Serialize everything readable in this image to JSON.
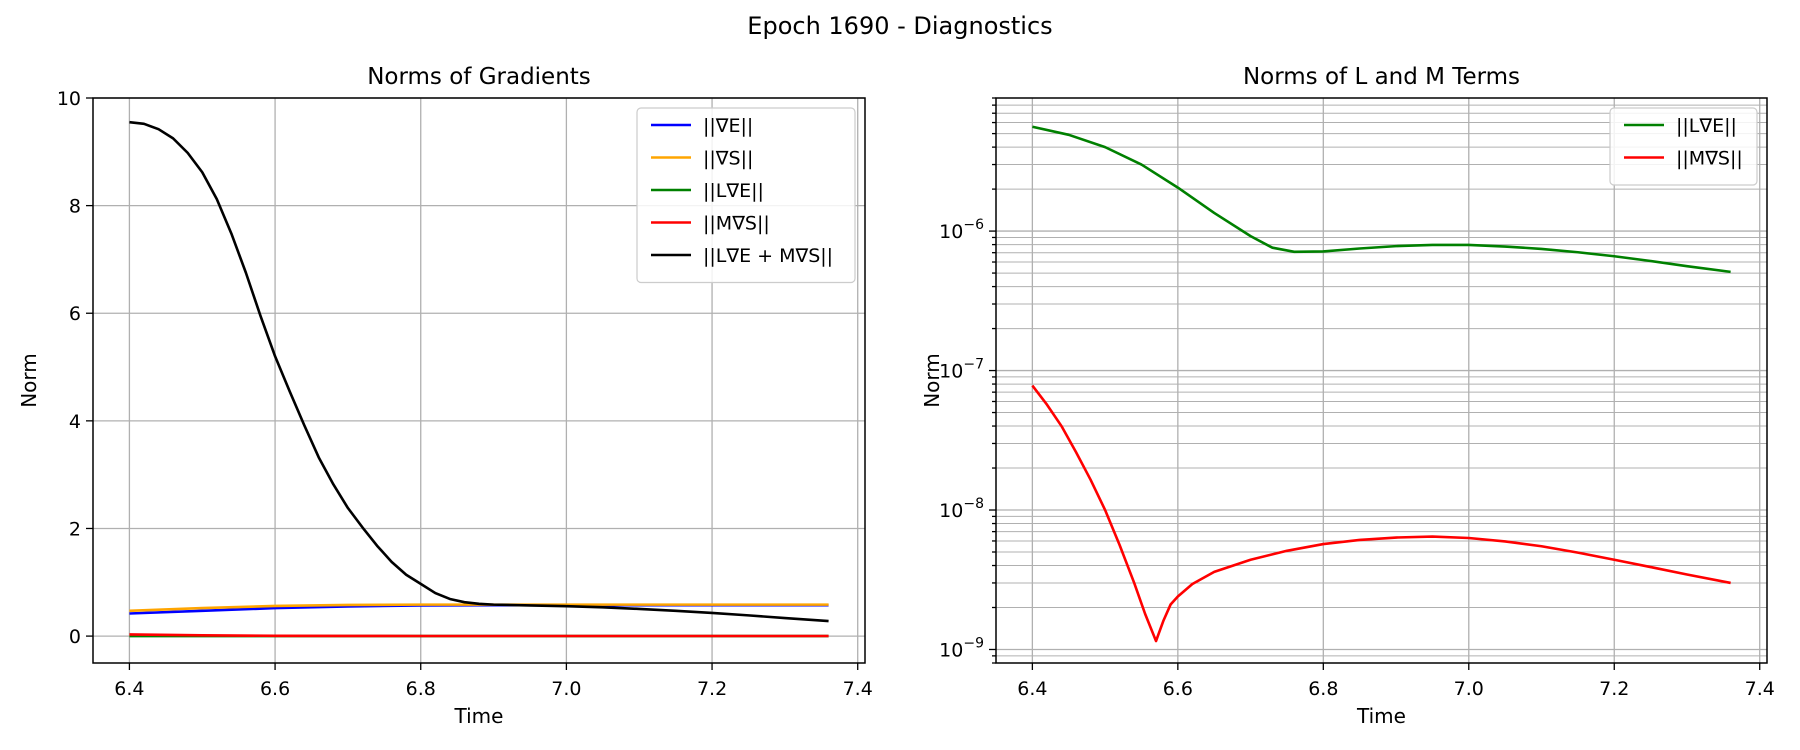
{
  "suptitle": "Epoch 1690 - Diagnostics",
  "chart_data": [
    {
      "type": "line",
      "title": "Norms of Gradients",
      "xlabel": "Time",
      "ylabel": "Norm",
      "xlim": [
        6.35,
        7.41
      ],
      "ylim": [
        -0.5,
        10
      ],
      "yscale": "linear",
      "xticks": [
        6.4,
        6.6,
        6.8,
        7.0,
        7.2,
        7.4
      ],
      "xtick_labels": [
        "6.4",
        "6.6",
        "6.8",
        "7.0",
        "7.2",
        "7.4"
      ],
      "yticks": [
        0,
        2,
        4,
        6,
        8,
        10
      ],
      "ytick_labels": [
        "0",
        "2",
        "4",
        "6",
        "8",
        "10"
      ],
      "grid": true,
      "legend_position": "upper right",
      "series": [
        {
          "name": "||∇E||",
          "color": "#0000ff",
          "x": [
            6.4,
            6.5,
            6.6,
            6.7,
            6.8,
            6.9,
            7.0,
            7.1,
            7.2,
            7.36
          ],
          "y": [
            0.42,
            0.47,
            0.52,
            0.55,
            0.57,
            0.575,
            0.575,
            0.575,
            0.575,
            0.575
          ]
        },
        {
          "name": "||∇S||",
          "color": "#ffa500",
          "x": [
            6.4,
            6.5,
            6.6,
            6.7,
            6.8,
            6.9,
            7.0,
            7.1,
            7.2,
            7.36
          ],
          "y": [
            0.47,
            0.52,
            0.56,
            0.58,
            0.585,
            0.585,
            0.585,
            0.585,
            0.585,
            0.585
          ]
        },
        {
          "name": "||L∇E||",
          "color": "#008000",
          "x": [
            6.4,
            7.36
          ],
          "y": [
            0.0,
            0.0
          ]
        },
        {
          "name": "||M∇S||",
          "color": "#ff0000",
          "x": [
            6.4,
            6.5,
            6.6,
            6.7,
            6.8,
            7.0,
            7.2,
            7.36
          ],
          "y": [
            0.03,
            0.015,
            0.006,
            0.003,
            0.002,
            0.002,
            0.002,
            0.002
          ]
        },
        {
          "name": "||L∇E + M∇S||",
          "color": "#000000",
          "x": [
            6.4,
            6.42,
            6.44,
            6.46,
            6.48,
            6.5,
            6.52,
            6.54,
            6.56,
            6.58,
            6.6,
            6.62,
            6.64,
            6.66,
            6.68,
            6.7,
            6.72,
            6.74,
            6.76,
            6.78,
            6.8,
            6.82,
            6.84,
            6.86,
            6.88,
            6.9,
            6.95,
            7.0,
            7.05,
            7.1,
            7.15,
            7.2,
            7.25,
            7.3,
            7.36
          ],
          "y": [
            9.55,
            9.52,
            9.42,
            9.25,
            8.98,
            8.62,
            8.12,
            7.48,
            6.75,
            5.95,
            5.2,
            4.55,
            3.92,
            3.32,
            2.82,
            2.38,
            2.02,
            1.68,
            1.38,
            1.14,
            0.97,
            0.8,
            0.69,
            0.63,
            0.6,
            0.585,
            0.57,
            0.555,
            0.535,
            0.505,
            0.47,
            0.43,
            0.385,
            0.335,
            0.28
          ]
        }
      ]
    },
    {
      "type": "line",
      "title": "Norms of L and M Terms",
      "xlabel": "Time",
      "ylabel": "Norm",
      "xlim": [
        6.35,
        7.41
      ],
      "ylim": [
        8e-10,
        9e-06
      ],
      "yscale": "log",
      "xticks": [
        6.4,
        6.6,
        6.8,
        7.0,
        7.2,
        7.4
      ],
      "xtick_labels": [
        "6.4",
        "6.6",
        "6.8",
        "7.0",
        "7.2",
        "7.4"
      ],
      "yticks": [
        1e-09,
        1e-08,
        1e-07,
        1e-06
      ],
      "ytick_labels": [
        {
          "base": "10",
          "exp": "−9"
        },
        {
          "base": "10",
          "exp": "−8"
        },
        {
          "base": "10",
          "exp": "−7"
        },
        {
          "base": "10",
          "exp": "−6"
        }
      ],
      "grid": true,
      "minor_grid": true,
      "legend_position": "upper right",
      "series": [
        {
          "name": "||L∇E||",
          "color": "#008000",
          "x": [
            6.4,
            6.45,
            6.5,
            6.55,
            6.6,
            6.65,
            6.7,
            6.73,
            6.76,
            6.8,
            6.85,
            6.9,
            6.95,
            7.0,
            7.05,
            7.1,
            7.15,
            7.2,
            7.25,
            7.3,
            7.36
          ],
          "y": [
            5.6e-06,
            4.9e-06,
            4e-06,
            3e-06,
            2.05e-06,
            1.35e-06,
            9.2e-07,
            7.6e-07,
            7.1e-07,
            7.15e-07,
            7.5e-07,
            7.8e-07,
            7.95e-07,
            7.95e-07,
            7.75e-07,
            7.45e-07,
            7.05e-07,
            6.6e-07,
            6.1e-07,
            5.6e-07,
            5.1e-07
          ]
        },
        {
          "name": "||M∇S||",
          "color": "#ff0000",
          "x": [
            6.4,
            6.42,
            6.44,
            6.46,
            6.48,
            6.5,
            6.52,
            6.54,
            6.555,
            6.57,
            6.58,
            6.59,
            6.6,
            6.62,
            6.65,
            6.7,
            6.75,
            6.8,
            6.85,
            6.9,
            6.95,
            7.0,
            7.05,
            7.1,
            7.15,
            7.2,
            7.25,
            7.3,
            7.36
          ],
          "y": [
            7.8e-08,
            5.7e-08,
            4e-08,
            2.6e-08,
            1.65e-08,
            1e-08,
            5.6e-09,
            3e-09,
            1.8e-09,
            1.15e-09,
            1.6e-09,
            2.1e-09,
            2.4e-09,
            2.95e-09,
            3.6e-09,
            4.4e-09,
            5.1e-09,
            5.7e-09,
            6.1e-09,
            6.35e-09,
            6.45e-09,
            6.3e-09,
            5.95e-09,
            5.5e-09,
            4.95e-09,
            4.4e-09,
            3.9e-09,
            3.45e-09,
            3e-09
          ]
        }
      ]
    }
  ]
}
